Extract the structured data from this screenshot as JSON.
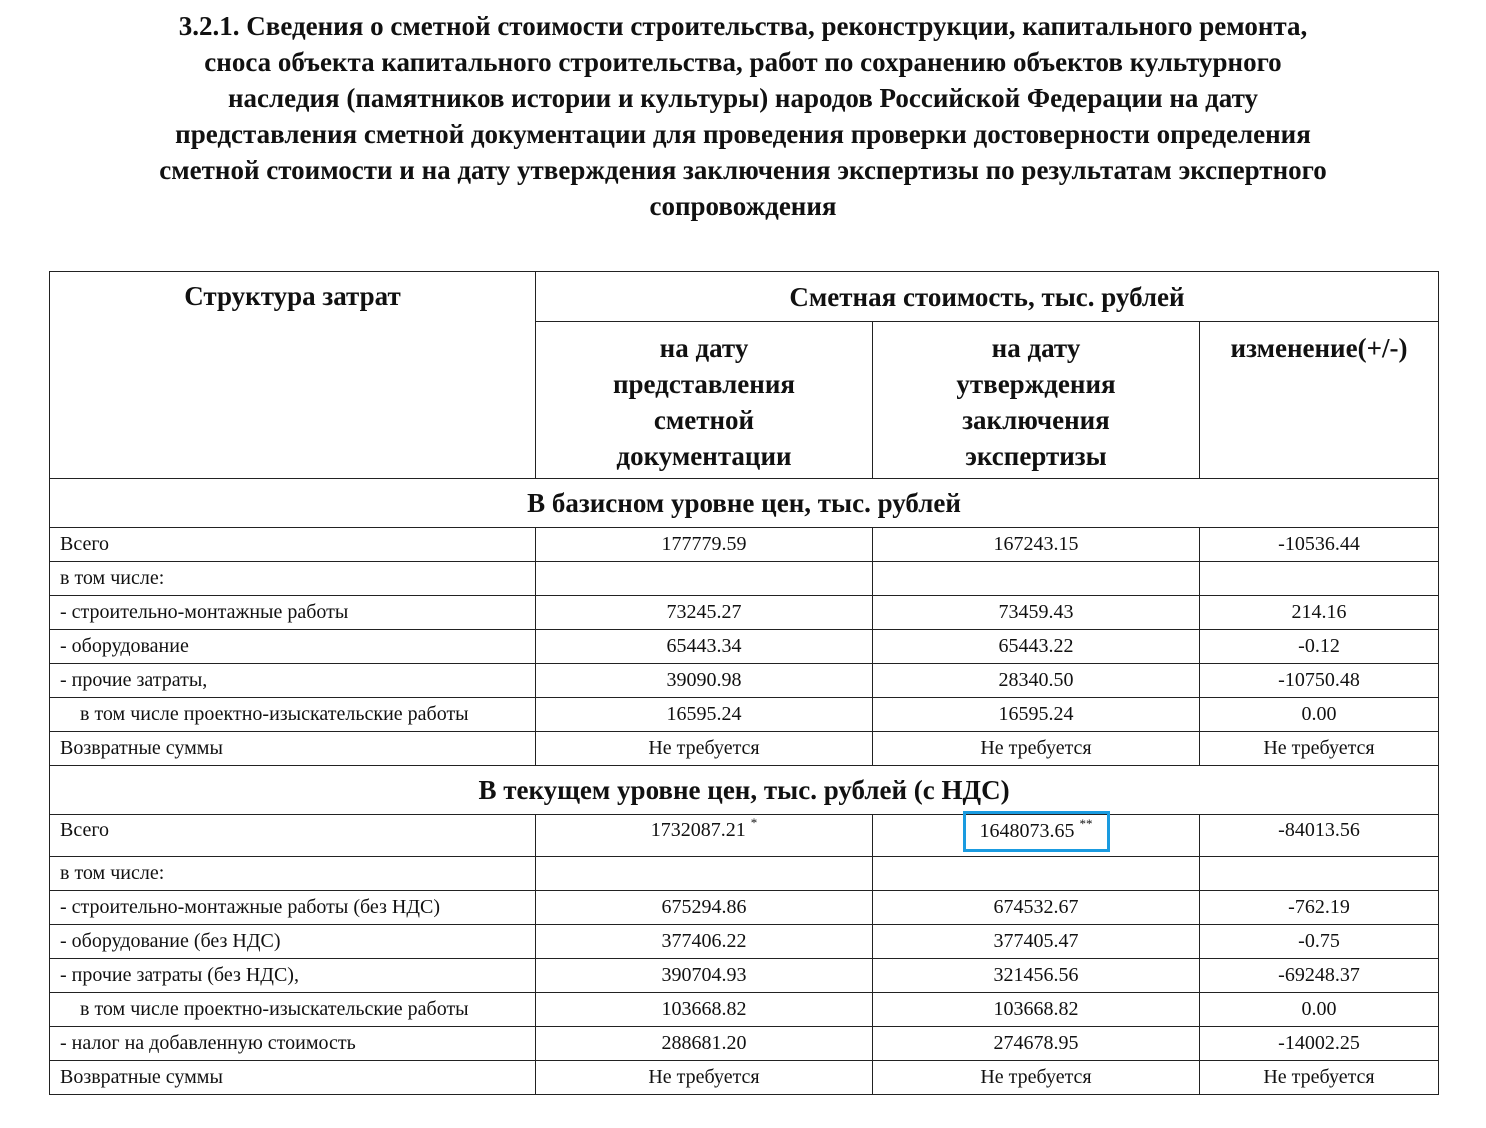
{
  "title_lines": [
    "3.2.1. Сведения о сметной стоимости строительства, реконструкции, капитального ремонта,",
    "сноса объекта капитального строительства, работ по сохранению объектов культурного",
    "наследия (памятников истории и культуры) народов Российской Федерации на дату",
    "представления сметной документации для проведения проверки достоверности определения",
    "сметной стоимости и на дату утверждения заключения экспертизы по результатам экспертного",
    "сопровождения"
  ],
  "header": {
    "structure": "Структура затрат",
    "cost": "Сметная стоимость, тыс. рублей",
    "col_submitted": "на дату представления сметной документации",
    "col_approved": "на дату утверждения заключения экспертизы",
    "col_change": "изменение(+/-)"
  },
  "highlight_color": "#1a9be0",
  "sections": [
    {
      "title": "В базисном уровне цен, тыс. рублей",
      "rows": [
        [
          "Всего",
          "177779.59",
          "167243.15",
          "-10536.44"
        ],
        [
          "в том числе:",
          "",
          "",
          ""
        ],
        [
          "- строительно-монтажные работы",
          "73245.27",
          "73459.43",
          "214.16"
        ],
        [
          "- оборудование",
          "65443.34",
          "65443.22",
          "-0.12"
        ],
        [
          "- прочие затраты,",
          "39090.98",
          "28340.50",
          "-10750.48"
        ],
        [
          "в том числе проектно-изыскательские работы",
          "16595.24",
          "16595.24",
          "0.00"
        ],
        [
          "Возвратные суммы",
          "Не требуется",
          "Не требуется",
          "Не требуется"
        ]
      ]
    },
    {
      "title": "В текущем уровне цен, тыс. рублей (с НДС)",
      "total": {
        "label": "Всего",
        "submitted": "1732087.21",
        "submitted_mark": "*",
        "approved": "1648073.65",
        "approved_mark": "**",
        "change": "-84013.56"
      },
      "rows": [
        [
          "в том числе:",
          "",
          "",
          ""
        ],
        [
          "- строительно-монтажные работы (без НДС)",
          "675294.86",
          "674532.67",
          "-762.19"
        ],
        [
          "- оборудование (без НДС)",
          "377406.22",
          "377405.47",
          "-0.75"
        ],
        [
          "- прочие затраты (без НДС),",
          "390704.93",
          "321456.56",
          "-69248.37"
        ],
        [
          "в том числе проектно-изыскательские работы",
          "103668.82",
          "103668.82",
          "0.00"
        ],
        [
          "- налог на добавленную стоимость",
          "288681.20",
          "274678.95",
          "-14002.25"
        ],
        [
          "Возвратные суммы",
          "Не требуется",
          "Не требуется",
          "Не требуется"
        ]
      ]
    }
  ]
}
